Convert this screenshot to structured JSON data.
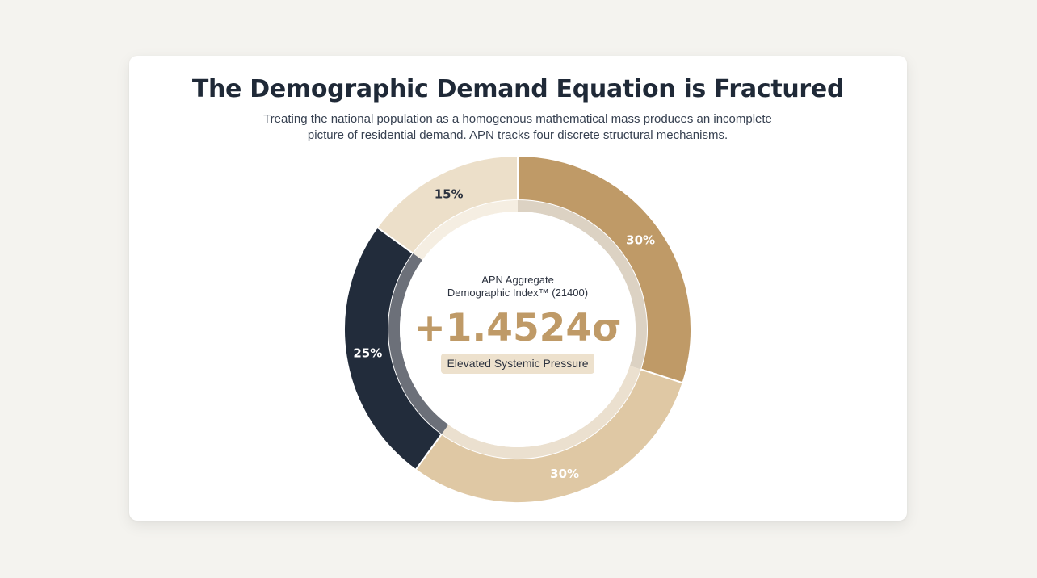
{
  "header": {
    "title": "The Demographic Demand Equation is Fractured",
    "subtitle_line1": "Treating the national population as a homogenous mathematical mass produces an incomplete",
    "subtitle_line2": "picture of residential demand. APN tracks four discrete structural mechanisms."
  },
  "center": {
    "label_line1": "APN Aggregate",
    "label_line2": "Demographic Index™ (21400)",
    "value": "+1.4524σ",
    "badge": "Elevated Systemic Pressure"
  },
  "colors": {
    "slice_1": "#bf9a67",
    "slice_2": "#dfc8a4",
    "slice_3": "#222c3b",
    "slice_4": "#ecdfc9",
    "value": "#bf9a67",
    "badge_bg": "#ede1cd"
  },
  "chart_data": {
    "type": "pie",
    "title": "",
    "categories": [
      "",
      "",
      "",
      ""
    ],
    "values": [
      30,
      30,
      25,
      15
    ],
    "labels": [
      "30%",
      "30%",
      "25%",
      "15%"
    ],
    "start_angle_deg": 0,
    "direction": "clockwise"
  }
}
